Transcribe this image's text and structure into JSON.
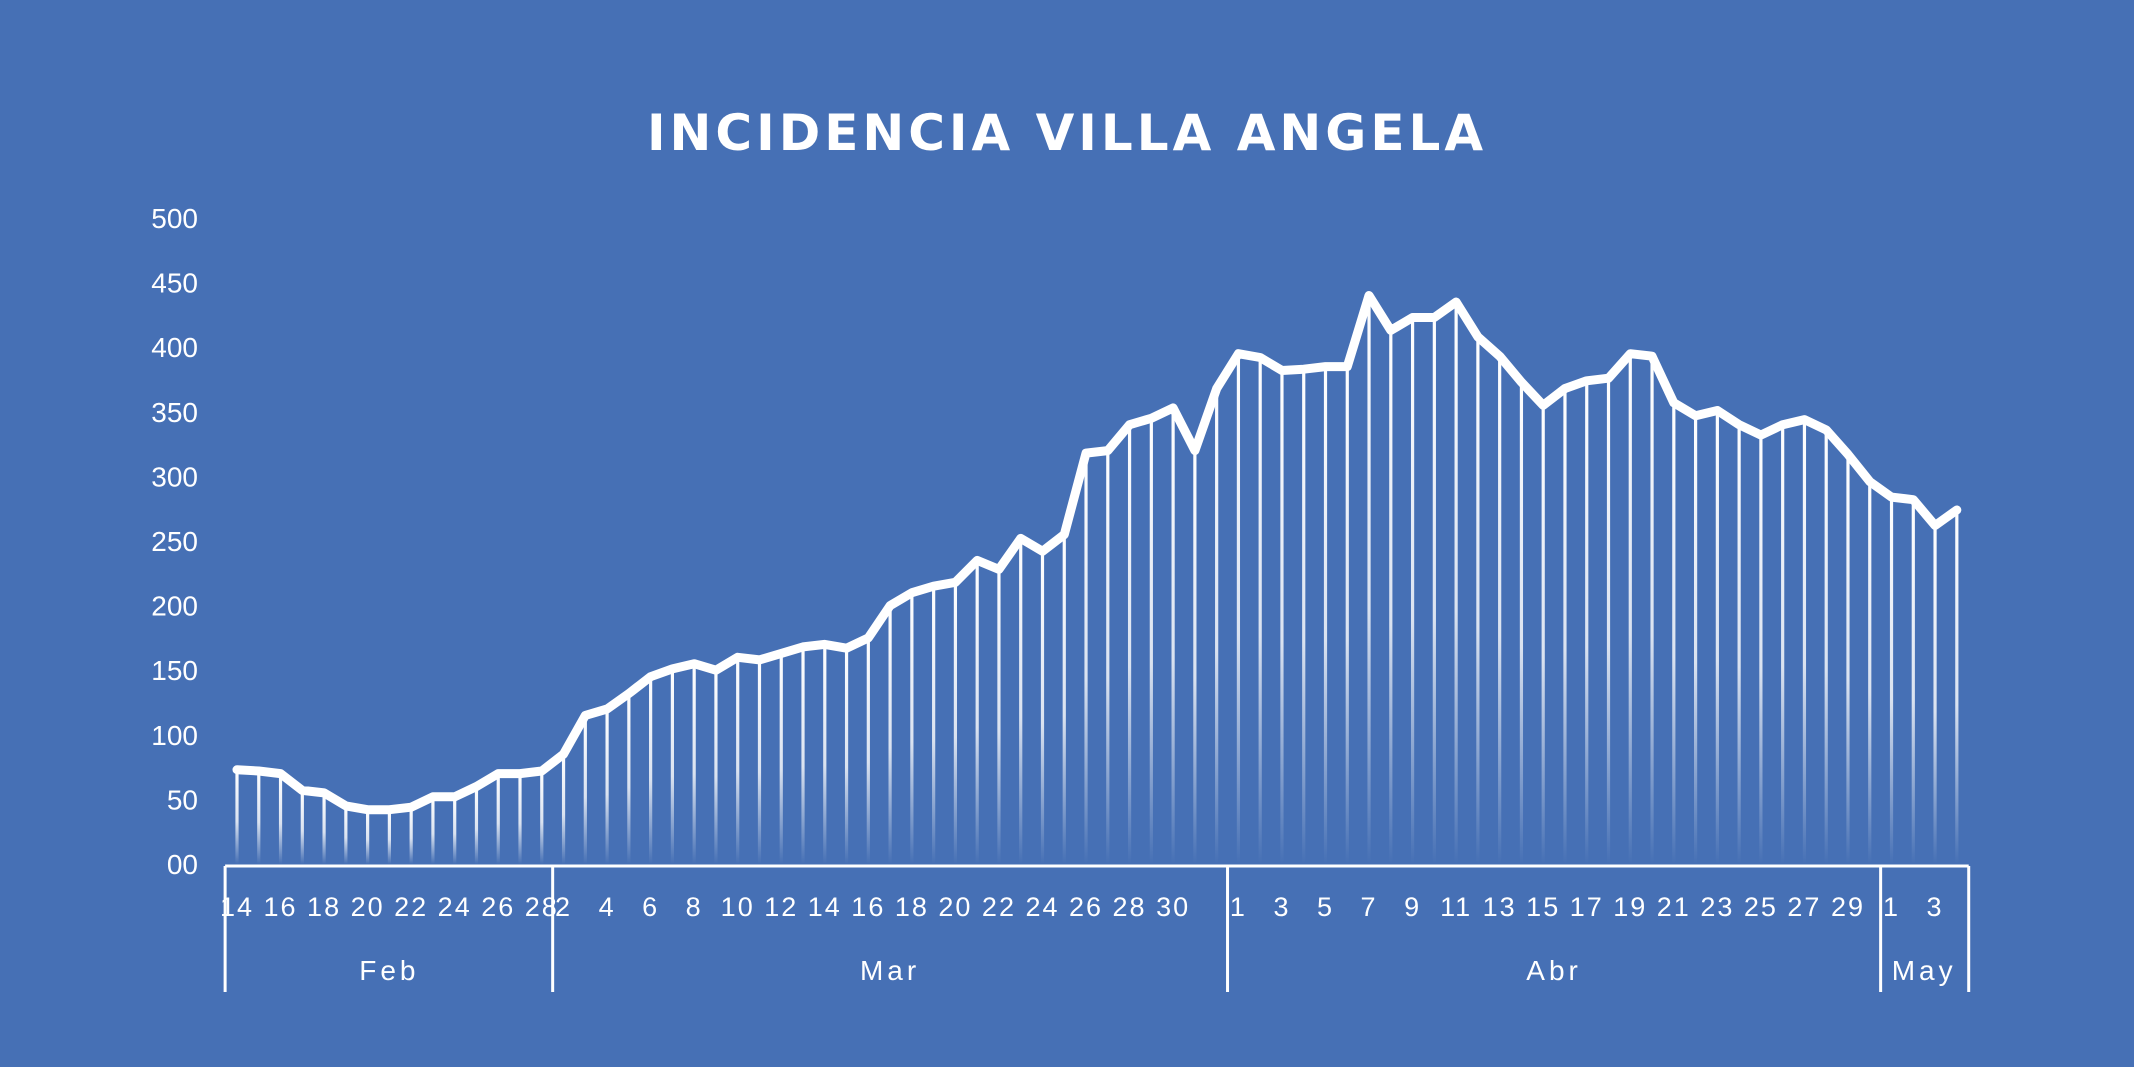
{
  "chart_data": {
    "type": "area",
    "title": "INCIDENCIA VILLA ANGELA",
    "ylim": [
      0,
      500
    ],
    "yticks": [
      "00",
      "50",
      "100",
      "150",
      "200",
      "250",
      "300",
      "350",
      "400",
      "450",
      "500"
    ],
    "grid": false,
    "legend": "none",
    "colors": {
      "background": "#4670b5",
      "line": "#ffffff"
    },
    "months": [
      {
        "name": "Feb",
        "days": [
          14,
          15,
          16,
          17,
          18,
          19,
          20,
          21,
          22,
          23,
          24,
          25,
          26,
          27,
          28
        ],
        "values": [
          73,
          72,
          70,
          57,
          55,
          45,
          42,
          42,
          44,
          52,
          52,
          60,
          70,
          70,
          72
        ]
      },
      {
        "name": "Mar",
        "days": [
          1,
          2,
          3,
          4,
          5,
          6,
          7,
          8,
          9,
          10,
          11,
          12,
          13,
          14,
          15,
          16,
          17,
          18,
          19,
          20,
          21,
          22,
          23,
          24,
          25,
          26,
          27,
          28,
          29,
          30,
          31
        ],
        "values": [
          85,
          115,
          120,
          132,
          145,
          151,
          155,
          150,
          160,
          158,
          163,
          168,
          170,
          167,
          175,
          200,
          210,
          215,
          218,
          235,
          228,
          252,
          242,
          255,
          318,
          320,
          340,
          345,
          353,
          320,
          368
        ]
      },
      {
        "name": "Abr",
        "days": [
          1,
          2,
          3,
          4,
          5,
          6,
          7,
          8,
          9,
          10,
          11,
          12,
          13,
          14,
          15,
          16,
          17,
          18,
          19,
          20,
          21,
          22,
          23,
          24,
          25,
          26,
          27,
          28,
          29,
          30
        ],
        "values": [
          395,
          392,
          382,
          383,
          385,
          385,
          440,
          413,
          423,
          423,
          435,
          408,
          393,
          373,
          355,
          368,
          374,
          376,
          395,
          393,
          357,
          347,
          351,
          340,
          332,
          340,
          344,
          336,
          317,
          296
        ]
      },
      {
        "name": "May",
        "days": [
          1,
          2,
          3,
          4
        ],
        "values": [
          284,
          282,
          262,
          274
        ]
      }
    ],
    "tick_labels": {
      "Feb": [
        "14",
        "16",
        "18",
        "20",
        "22",
        "24",
        "26",
        "28"
      ],
      "Mar": [
        "2",
        "4",
        "6",
        "8",
        "10",
        "12",
        "14",
        "16",
        "18",
        "20",
        "22",
        "24",
        "26",
        "28",
        "30"
      ],
      "Abr": [
        "1",
        "3",
        "5",
        "7",
        "9",
        "11",
        "13",
        "15",
        "17",
        "19",
        "21",
        "23",
        "25",
        "27",
        "29"
      ],
      "May": [
        "1",
        "3"
      ]
    }
  }
}
